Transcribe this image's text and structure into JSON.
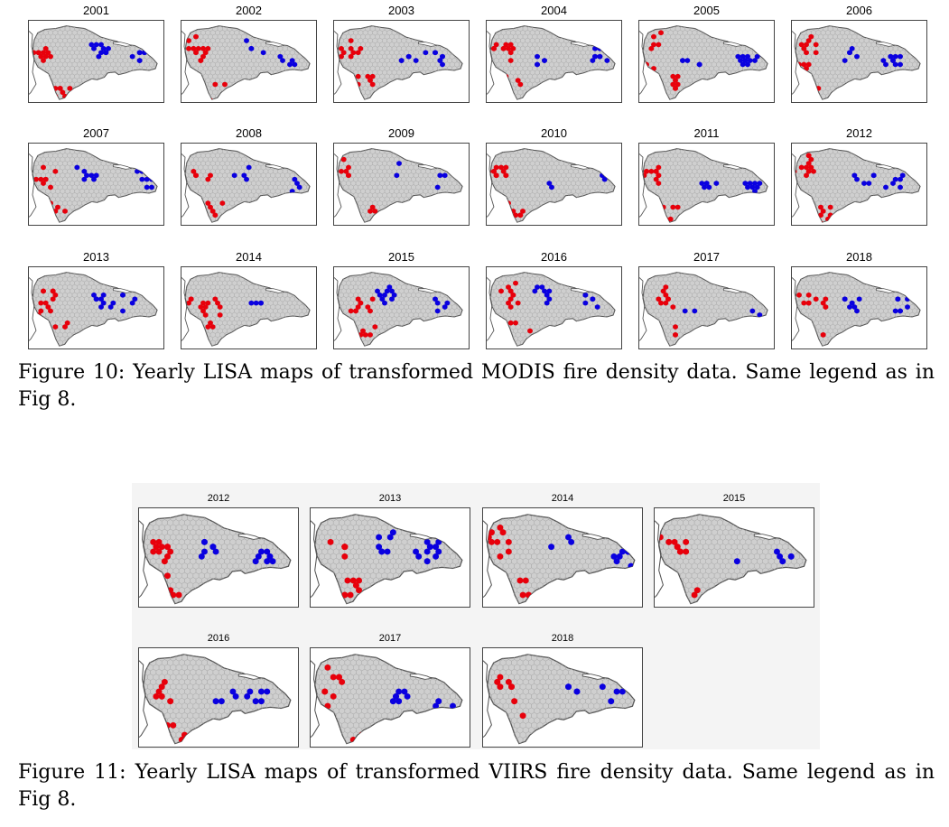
{
  "figure10": {
    "years": [
      "2001",
      "2002",
      "2003",
      "2004",
      "2005",
      "2006",
      "2007",
      "2008",
      "2009",
      "2010",
      "2011",
      "2012",
      "2013",
      "2014",
      "2015",
      "2016",
      "2017",
      "2018"
    ],
    "caption": "Figure 10: Yearly LISA maps of transformed MODIS fire density data. Same legend as in Fig 8."
  },
  "figure11": {
    "years": [
      "2012",
      "2013",
      "2014",
      "2015",
      "2016",
      "2017",
      "2018"
    ],
    "caption": "Figure 11: Yearly LISA maps of transformed VIIRS fire density data. Same legend as in Fig 8."
  },
  "colors": {
    "hot_spot": "#e8000b",
    "cold_spot": "#0a00e0",
    "island_fill": "#cfcfcf",
    "outline": "#555555"
  }
}
